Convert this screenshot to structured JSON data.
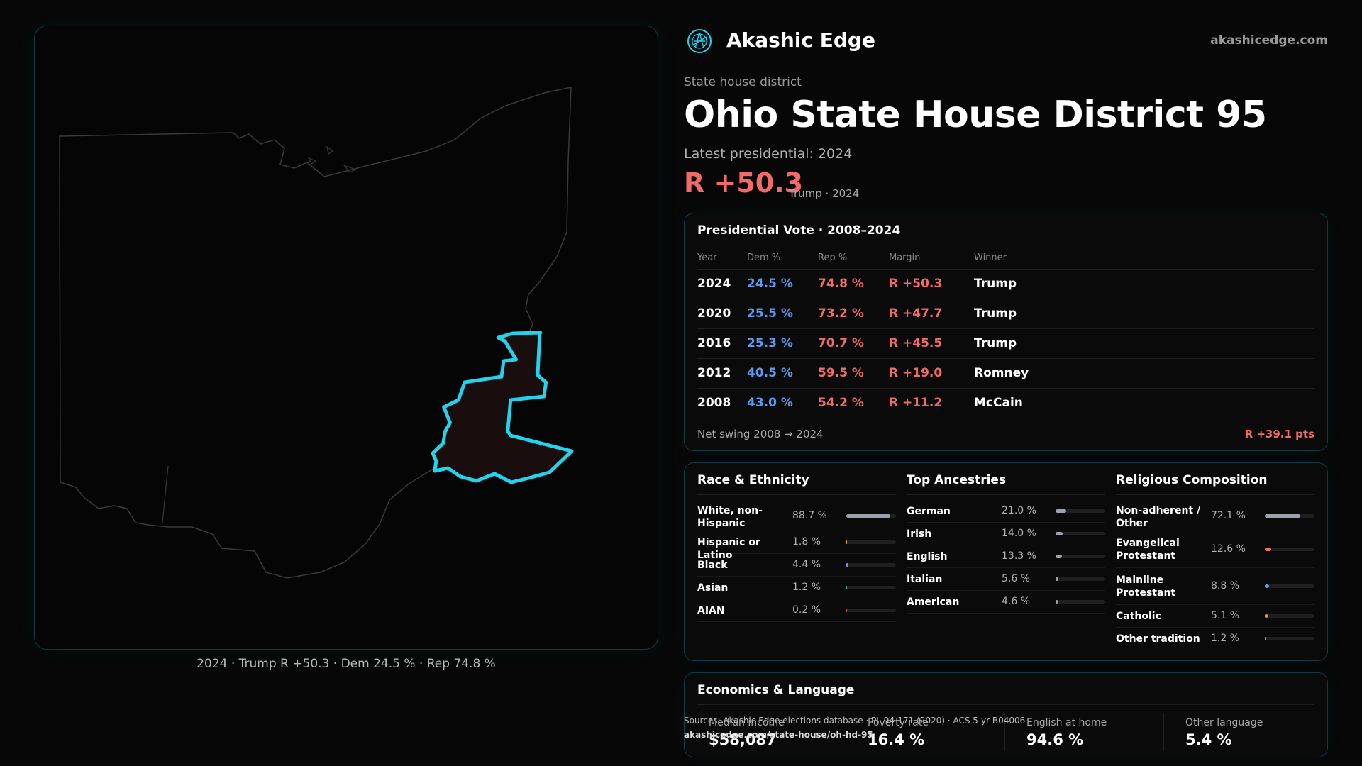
{
  "brand": {
    "name": "Akashic Edge",
    "url": "akashicedge.com",
    "logo_icon": "akashic-edge-logo-icon",
    "accent": "#22d3ee"
  },
  "district": {
    "kind": "State house district",
    "title": "Ohio State House District 95",
    "latest_label": "Latest presidential: 2024",
    "margin": "R +50.3",
    "margin_note": "Trump · 2024"
  },
  "map": {
    "caption": "2024 · Trump R +50.3 · Dem 24.5 % · Rep 74.8 %",
    "highlight_color": "#22d3ee"
  },
  "presidential": {
    "title": "Presidential Vote · 2008–2024",
    "headers": {
      "year": "Year",
      "dem": "Dem %",
      "rep": "Rep %",
      "margin": "Margin",
      "winner": "Winner"
    },
    "rows": [
      {
        "year": "2024",
        "dem": "24.5 %",
        "rep": "74.8 %",
        "margin": "R +50.3",
        "winner": "Trump"
      },
      {
        "year": "2020",
        "dem": "25.5 %",
        "rep": "73.2 %",
        "margin": "R +47.7",
        "winner": "Trump"
      },
      {
        "year": "2016",
        "dem": "25.3 %",
        "rep": "70.7 %",
        "margin": "R +45.5",
        "winner": "Trump"
      },
      {
        "year": "2012",
        "dem": "40.5 %",
        "rep": "59.5 %",
        "margin": "R +19.0",
        "winner": "Romney"
      },
      {
        "year": "2008",
        "dem": "43.0 %",
        "rep": "54.2 %",
        "margin": "R +11.2",
        "winner": "McCain"
      }
    ],
    "swing_label": "Net swing 2008 → 2024",
    "swing_value": "R +39.1 pts",
    "colors": {
      "dem": "#5b9cf0",
      "rep": "#f26b6b"
    }
  },
  "race": {
    "title": "Race & Ethnicity",
    "items": [
      {
        "label": "White, non-Hispanic",
        "pct": "88.7 %",
        "value": 88.7,
        "color": "#9ca3af"
      },
      {
        "label": "Hispanic or Latino",
        "pct": "1.8 %",
        "value": 1.8,
        "color": "#f59e0b"
      },
      {
        "label": "Black",
        "pct": "4.4 %",
        "value": 4.4,
        "color": "#8b8bf5"
      },
      {
        "label": "Asian",
        "pct": "1.2 %",
        "value": 1.2,
        "color": "#14b8a6"
      },
      {
        "label": "AIAN",
        "pct": "0.2 %",
        "value": 0.2,
        "color": "#ef4444"
      }
    ]
  },
  "ancestry": {
    "title": "Top Ancestries",
    "items": [
      {
        "label": "German",
        "pct": "21.0 %",
        "value": 21.0,
        "color": "#9ca3af"
      },
      {
        "label": "Irish",
        "pct": "14.0 %",
        "value": 14.0,
        "color": "#9ca3af"
      },
      {
        "label": "English",
        "pct": "13.3 %",
        "value": 13.3,
        "color": "#9ca3af"
      },
      {
        "label": "Italian",
        "pct": "5.6 %",
        "value": 5.6,
        "color": "#9ca3af"
      },
      {
        "label": "American",
        "pct": "4.6 %",
        "value": 4.6,
        "color": "#9ca3af"
      }
    ]
  },
  "religion": {
    "title": "Religious Composition",
    "items": [
      {
        "label": "Non-adherent / Other",
        "pct": "72.1 %",
        "value": 72.1,
        "color": "#9ca3af"
      },
      {
        "label": "Evangelical Protestant",
        "pct": "12.6 %",
        "value": 12.6,
        "color": "#f26b6b"
      },
      {
        "label": "Mainline Protestant",
        "pct": "8.8 %",
        "value": 8.8,
        "color": "#5b9cf0"
      },
      {
        "label": "Catholic",
        "pct": "5.1 %",
        "value": 5.1,
        "color": "#f59e0b"
      },
      {
        "label": "Other tradition",
        "pct": "1.2 %",
        "value": 1.2,
        "color": "#9ca3af"
      }
    ]
  },
  "economics": {
    "title": "Economics & Language",
    "stats": [
      {
        "label": "Median income",
        "value": "$58,087"
      },
      {
        "label": "Poverty rate",
        "value": "16.4 %"
      },
      {
        "label": "English at home",
        "value": "94.6 %"
      },
      {
        "label": "Other language",
        "value": "5.4 %"
      }
    ]
  },
  "source": {
    "text": "Sources: Akashic Edge elections database · PL 94-171 (2020) · ACS 5-yr B04006",
    "url": "akashicedge.com/state-house/oh-hd-95"
  }
}
